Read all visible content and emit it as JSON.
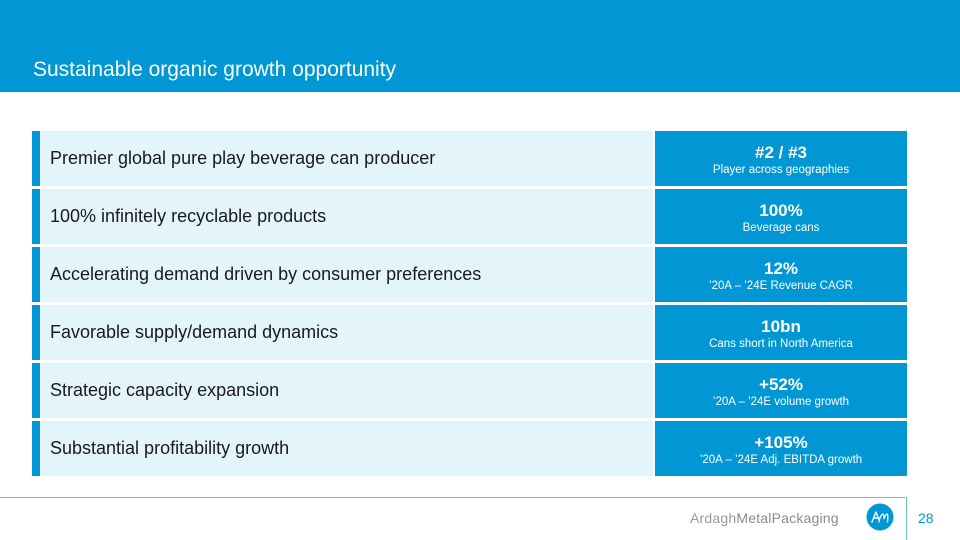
{
  "header": {
    "title": "Sustainable organic growth opportunity"
  },
  "rows": [
    {
      "label": "Premier global pure play beverage can producer",
      "value": "#2 / #3",
      "caption": "Player across geographies"
    },
    {
      "label": "100% infinitely recyclable products",
      "value": "100%",
      "caption": "Beverage cans"
    },
    {
      "label": "Accelerating demand driven by consumer preferences",
      "value": "12%",
      "caption": "’20A – ’24E Revenue CAGR"
    },
    {
      "label": "Favorable supply/demand dynamics",
      "value": "10bn",
      "caption": "Cans short in North America"
    },
    {
      "label": "Strategic capacity expansion",
      "value": "+52%",
      "caption": "’20A – ’24E volume growth"
    },
    {
      "label": "Substantial profitability growth",
      "value": "+105%",
      "caption": "’20A – ’24E Adj. EBITDA growth"
    }
  ],
  "footer": {
    "brand_prefix": "Ardagh",
    "brand_suffix": "MetalPackaging",
    "page_number": "28"
  },
  "colors": {
    "primary": "#0097d4",
    "row_background": "#e3f4fb",
    "footer_line": "#6cc3c4"
  }
}
